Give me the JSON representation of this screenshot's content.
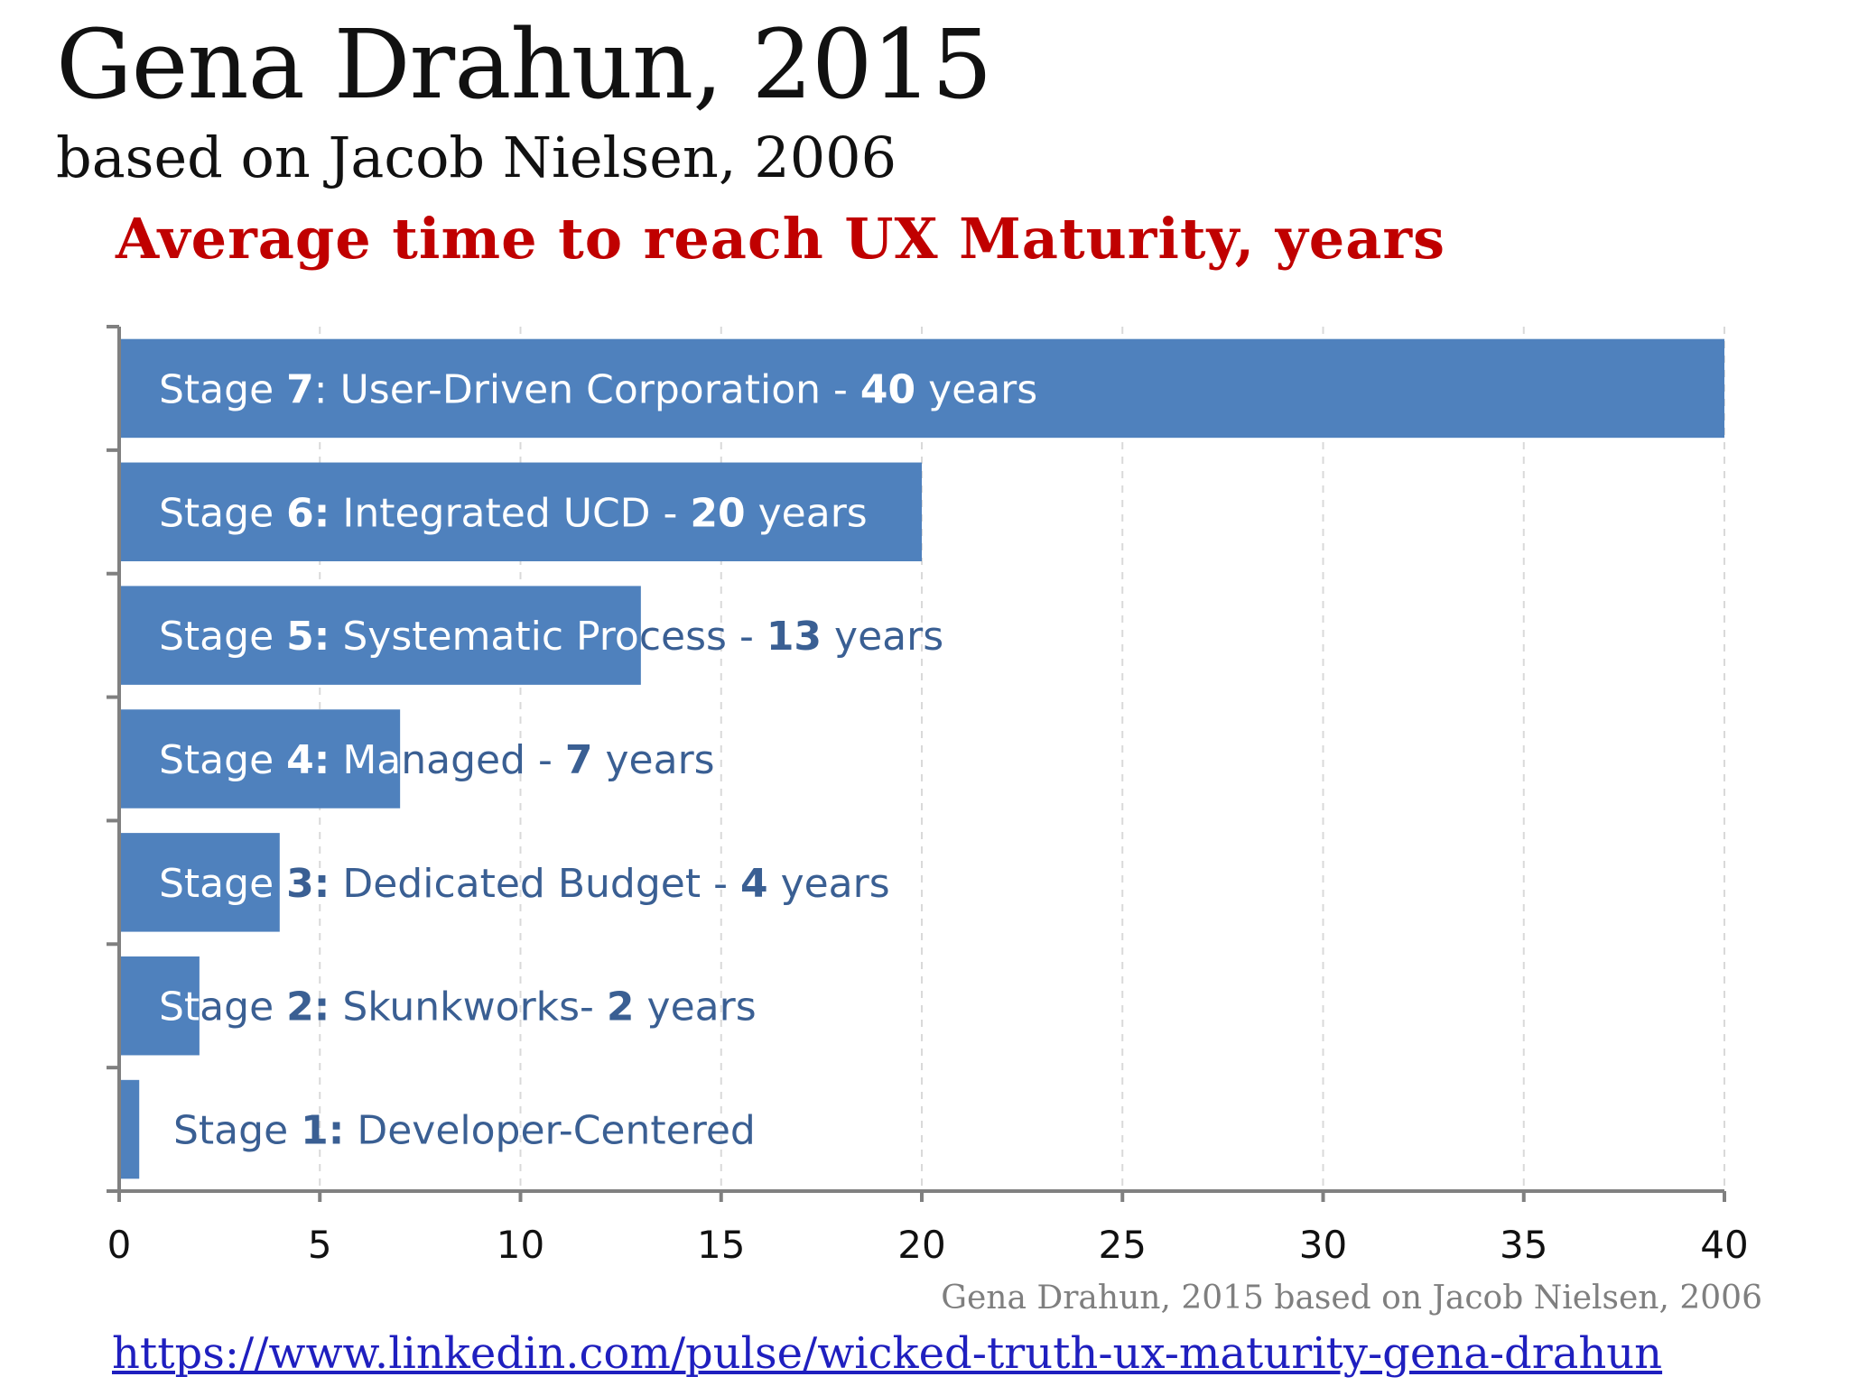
{
  "header": {
    "title": "Gena Drahun, 2015",
    "subtitle": "based on Jacob Nielsen, 2006"
  },
  "footer": {
    "credit": "Gena Drahun, 2015 based on Jacob Nielsen, 2006",
    "link": "https://www.linkedin.com/pulse/wicked-truth-ux-maturity-gena-drahun"
  },
  "colors": {
    "bar": "#4f81bd",
    "label_on_bar": "#ffffff",
    "label_off_bar": "#3a5f93",
    "title": "#c00000",
    "axis": "#808080",
    "grid": "#d9d9d9"
  },
  "chart_data": {
    "type": "bar",
    "orientation": "horizontal",
    "title": "Average time to reach UX Maturity, years",
    "xlabel": "",
    "ylabel": "",
    "xlim": [
      0,
      40
    ],
    "xticks": [
      0,
      5,
      10,
      15,
      20,
      25,
      30,
      35,
      40
    ],
    "grid": "vertical dashed",
    "categories": [
      "Stage 7: User-Driven Corporation - 40 years",
      "Stage 6: Integrated UCD - 20 years",
      "Stage 5: Systematic Process - 13 years",
      "Stage 4:   Managed - 7 years",
      "Stage 3: Dedicated Budget - 4 years",
      "Stage 2: Skunkworks- 2 years",
      "Stage 1: Developer-Centered"
    ],
    "label_parts": [
      [
        [
          "Stage ",
          false
        ],
        [
          "7",
          true
        ],
        [
          ": User-Driven Corporation - ",
          false
        ],
        [
          "40",
          true
        ],
        [
          " years",
          false
        ]
      ],
      [
        [
          "Stage ",
          false
        ],
        [
          "6:",
          true
        ],
        [
          " Integrated UCD - ",
          false
        ],
        [
          "20",
          true
        ],
        [
          " years",
          false
        ]
      ],
      [
        [
          "Stage ",
          false
        ],
        [
          "5:",
          true
        ],
        [
          " Systematic Process - ",
          false
        ],
        [
          "13",
          true
        ],
        [
          " years",
          false
        ]
      ],
      [
        [
          "Stage ",
          false
        ],
        [
          "4:",
          true
        ],
        [
          "   Managed - ",
          false
        ],
        [
          "7",
          true
        ],
        [
          " years",
          false
        ]
      ],
      [
        [
          "Stage ",
          false
        ],
        [
          "3:",
          true
        ],
        [
          " Dedicated Budget - ",
          false
        ],
        [
          "4",
          true
        ],
        [
          " years",
          false
        ]
      ],
      [
        [
          "Stage ",
          false
        ],
        [
          "2:",
          true
        ],
        [
          " Skunkworks- ",
          false
        ],
        [
          "2",
          true
        ],
        [
          " years",
          false
        ]
      ],
      [
        [
          "Stage ",
          false
        ],
        [
          "1:",
          true
        ],
        [
          " Developer-Centered",
          false
        ]
      ]
    ],
    "values": [
      40,
      20,
      13,
      7,
      4,
      2,
      0.5
    ]
  }
}
